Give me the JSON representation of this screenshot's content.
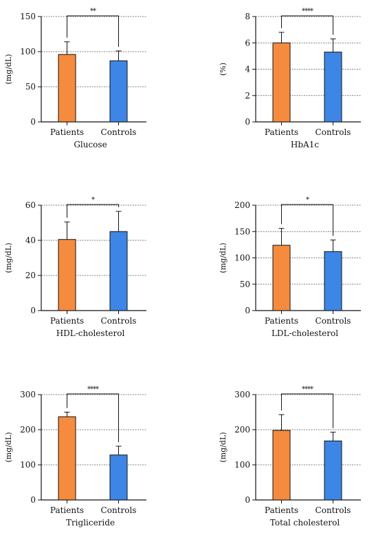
{
  "colors": {
    "patients": "#F58B3F",
    "controls": "#3D86E6"
  },
  "chart_data": [
    {
      "type": "bar",
      "title": "Glucose",
      "ylabel": "(mg/dL)",
      "categories": [
        "Patients",
        "Controls"
      ],
      "values": [
        96,
        87
      ],
      "errors": [
        18,
        14
      ],
      "ylim": [
        0,
        150
      ],
      "yticks": [
        0,
        50,
        100,
        150
      ],
      "significance": "**",
      "grid": true
    },
    {
      "type": "bar",
      "title": "HbA1c",
      "ylabel": "(%)",
      "categories": [
        "Patients",
        "Controls"
      ],
      "values": [
        6.0,
        5.3
      ],
      "errors": [
        0.8,
        1.0
      ],
      "ylim": [
        0,
        8
      ],
      "yticks": [
        0,
        2,
        4,
        6,
        8
      ],
      "significance": "****",
      "grid": true
    },
    {
      "type": "bar",
      "title": "HDL-cholesterol",
      "ylabel": "(mg/dL)",
      "categories": [
        "Patients",
        "Controls"
      ],
      "values": [
        40.5,
        45
      ],
      "errors": [
        10,
        11.5
      ],
      "ylim": [
        0,
        60
      ],
      "yticks": [
        0,
        20,
        40,
        60
      ],
      "significance": "*",
      "grid": true
    },
    {
      "type": "bar",
      "title": "LDL-cholesterol",
      "ylabel": "(mg/dL)",
      "categories": [
        "Patients",
        "Controls"
      ],
      "values": [
        124,
        112
      ],
      "errors": [
        32,
        22
      ],
      "ylim": [
        0,
        200
      ],
      "yticks": [
        0,
        50,
        100,
        150,
        200
      ],
      "significance": "*",
      "grid": true
    },
    {
      "type": "bar",
      "title": "Trigliceride",
      "ylabel": "(mg/dL)",
      "categories": [
        "Patients",
        "Controls"
      ],
      "values": [
        237,
        128
      ],
      "errors": [
        13,
        25
      ],
      "ylim": [
        0,
        300
      ],
      "yticks": [
        0,
        100,
        200,
        300
      ],
      "significance": "****",
      "grid": true
    },
    {
      "type": "bar",
      "title": "Total cholesterol",
      "ylabel": "(mg/dL)",
      "categories": [
        "Patients",
        "Controls"
      ],
      "values": [
        198,
        168
      ],
      "errors": [
        45,
        25
      ],
      "ylim": [
        0,
        300
      ],
      "yticks": [
        0,
        100,
        200,
        300
      ],
      "significance": "****",
      "grid": true
    }
  ]
}
